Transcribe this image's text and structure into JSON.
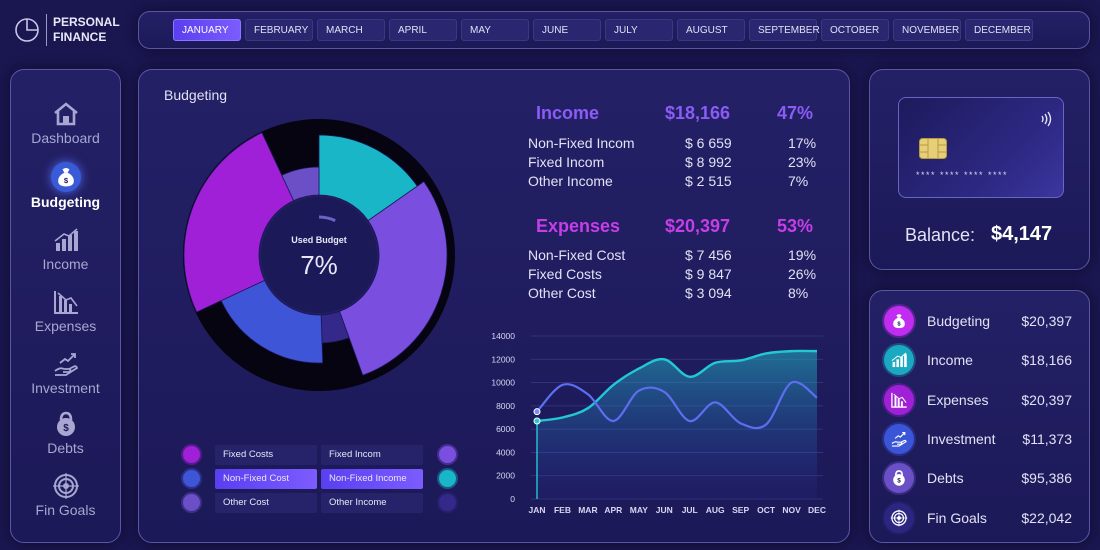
{
  "app": {
    "title_line1": "PERSONAL",
    "title_line2": "FINANCE"
  },
  "months": [
    "JANUARY",
    "FEBRUARY",
    "MARCH",
    "APRIL",
    "MAY",
    "JUNE",
    "JULY",
    "AUGUST",
    "SEPTEMBER",
    "OCTOBER",
    "NOVEMBER",
    "DECEMBER"
  ],
  "active_month": "JANUARY",
  "sidebar": {
    "items": [
      {
        "label": "Dashboard",
        "icon": "house-icon"
      },
      {
        "label": "Budgeting",
        "icon": "money-bag-icon",
        "active": true
      },
      {
        "label": "Income",
        "icon": "bar-chart-icon"
      },
      {
        "label": "Expenses",
        "icon": "declining-chart-icon"
      },
      {
        "label": "Investment",
        "icon": "hand-growth-icon"
      },
      {
        "label": "Debts",
        "icon": "kettlebell-icon"
      },
      {
        "label": "Fin Goals",
        "icon": "target-icon"
      }
    ]
  },
  "main": {
    "title": "Budgeting",
    "donut": {
      "center_label": "Used Budget",
      "center_value": "7%",
      "used_fraction": 0.07
    },
    "income": {
      "label": "Income",
      "total": "$18,166",
      "percent": "47%",
      "rows": [
        {
          "name": "Non-Fixed Incom",
          "value": "$ 6 659",
          "percent": "17%"
        },
        {
          "name": "Fixed Incom",
          "value": "$ 8 992",
          "percent": "23%"
        },
        {
          "name": "Other Income",
          "value": "$ 2 515",
          "percent": "7%"
        }
      ]
    },
    "expenses": {
      "label": "Expenses",
      "total": "$20,397",
      "percent": "53%",
      "rows": [
        {
          "name": "Non-Fixed Cost",
          "value": "$ 7 456",
          "percent": "19%"
        },
        {
          "name": "Fixed Costs",
          "value": "$ 9 847",
          "percent": "26%"
        },
        {
          "name": "Other Cost",
          "value": "$ 3 094",
          "percent": "8%"
        }
      ]
    },
    "legend": {
      "left": [
        "Fixed Costs",
        "Non-Fixed Cost",
        "Other Cost"
      ],
      "right": [
        "Fixed Incom",
        "Non-Fixed Income",
        "Other Income"
      ],
      "selected_row": 1
    }
  },
  "colors": {
    "income": "#8a5cf5",
    "expenses": "#c63ee8",
    "area": "#1fb3c2",
    "line": "#5d6ef0",
    "fixed_costs": "#a020d8",
    "non_fixed_cost": "#3f55d8",
    "other_cost": "#6a4fc7",
    "fixed_incom": "#7a4fe0",
    "non_fixed_income": "#18b6c6",
    "other_income": "#34288a"
  },
  "chart_data": [
    {
      "type": "pie",
      "title": "",
      "series": [
        {
          "name": "Outer",
          "labels": [
            "Non-Fixed Incom",
            "Fixed Incom",
            "Other Income",
            "Non-Fixed Cost",
            "Fixed Costs",
            "Other Cost"
          ],
          "values": [
            17,
            23,
            7,
            19,
            26,
            8
          ]
        }
      ]
    },
    {
      "type": "area",
      "categories": [
        "JAN",
        "FEB",
        "MAR",
        "APR",
        "MAY",
        "JUN",
        "JUL",
        "AUG",
        "SEP",
        "OCT",
        "NOV",
        "DEC"
      ],
      "ylim": [
        0,
        14000
      ],
      "yticks": [
        0,
        2000,
        4000,
        6000,
        8000,
        10000,
        12000,
        14000
      ],
      "series": [
        {
          "values": [
            6700,
            7000,
            7800,
            9800,
            11200,
            12000,
            10500,
            11700,
            11900,
            12500,
            12700,
            12700
          ]
        },
        {
          "values": [
            7500,
            9800,
            9000,
            6700,
            9300,
            9200,
            6700,
            8300,
            6500,
            6400,
            10000,
            8700
          ]
        }
      ],
      "grid": true
    }
  ],
  "card": {
    "number": "**** **** **** ****"
  },
  "balance": {
    "label": "Balance:",
    "value": "$4,147"
  },
  "summary": [
    {
      "label": "Budgeting",
      "value": "$20,397",
      "icon": "money-bag-icon",
      "color": "#c02cf0"
    },
    {
      "label": "Income",
      "value": "$18,166",
      "icon": "bar-chart-icon",
      "color": "#1aa9c0"
    },
    {
      "label": "Expenses",
      "value": "$20,397",
      "icon": "declining-chart-icon",
      "color": "#a020d8"
    },
    {
      "label": "Investment",
      "value": "$11,373",
      "icon": "hand-growth-icon",
      "color": "#3b55d8"
    },
    {
      "label": "Debts",
      "value": "$95,386",
      "icon": "kettlebell-icon",
      "color": "#6a4fc7"
    },
    {
      "label": "Fin Goals",
      "value": "$22,042",
      "icon": "target-icon",
      "color": "#2c2680"
    }
  ]
}
